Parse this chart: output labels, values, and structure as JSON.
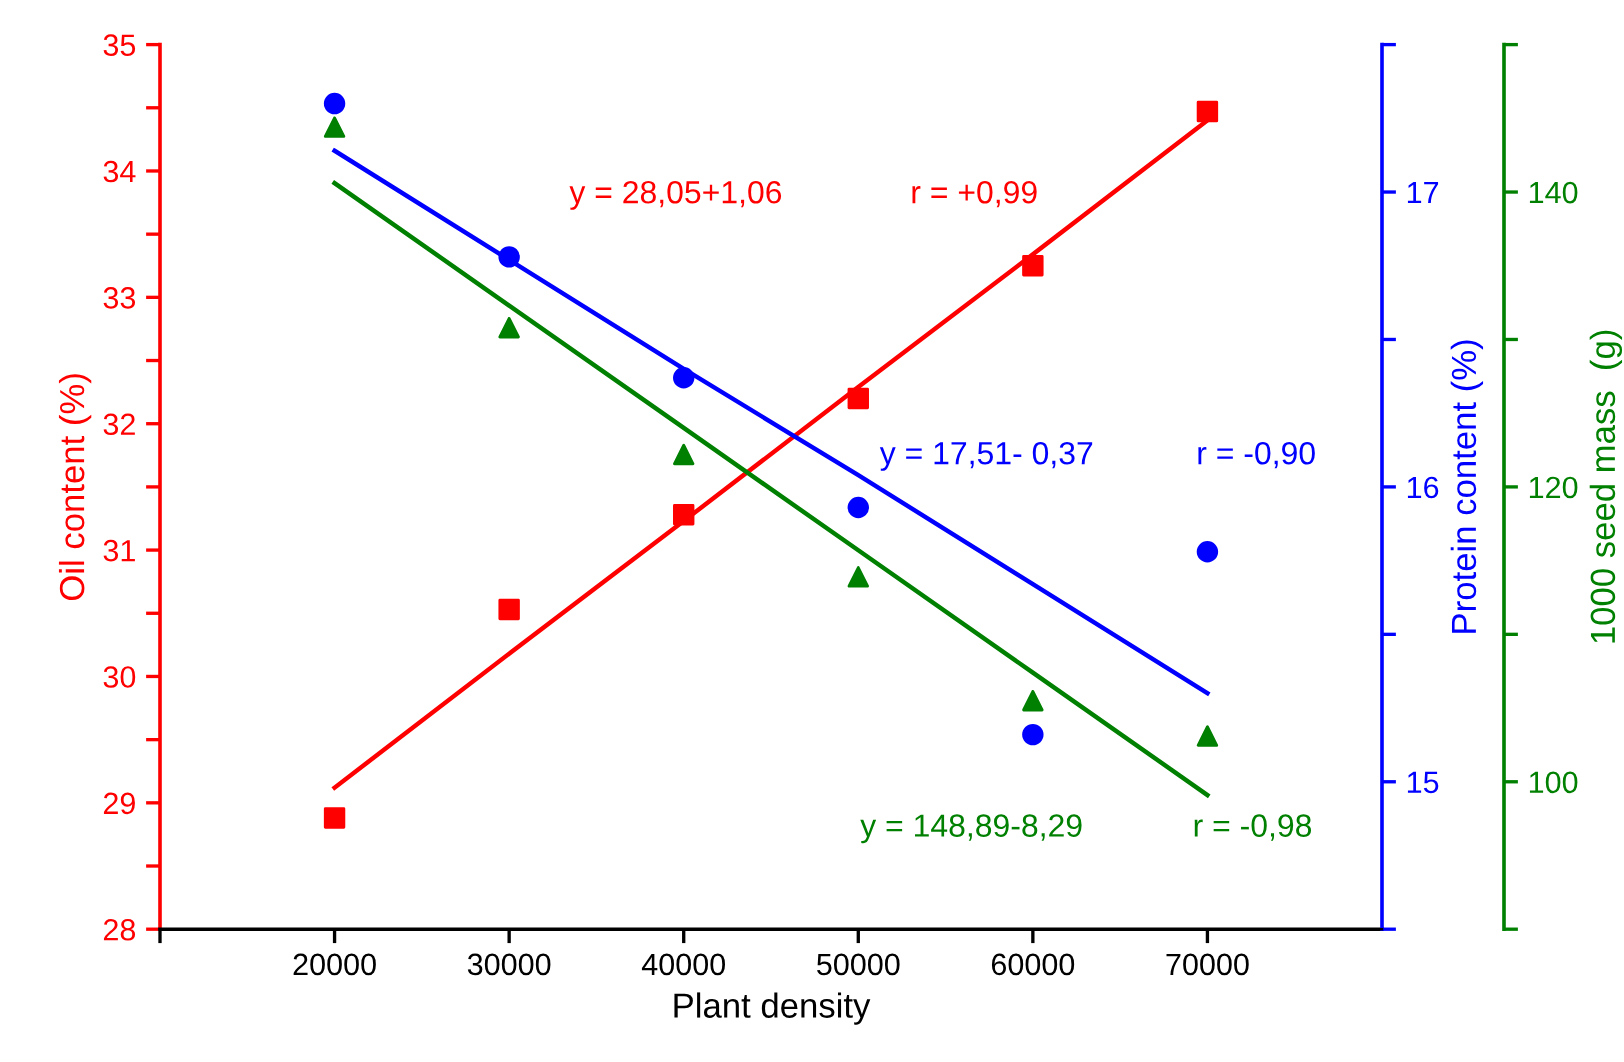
{
  "chart_data": {
    "type": "scatter",
    "xlabel": "Plant density",
    "ylabel": "Oil content (%)",
    "y2label": "Protein content (%)",
    "y3label": "1000 seed mass  (g)",
    "x": [
      20000,
      30000,
      40000,
      50000,
      60000,
      70000
    ],
    "xlim": [
      10000,
      80000
    ],
    "xticks": [
      {
        "value": 10000,
        "label": null
      },
      20000,
      30000,
      40000,
      50000,
      60000,
      70000
    ],
    "ylim": [
      28,
      35
    ],
    "yticks": [
      28,
      {
        "value": 28.5,
        "label": null
      },
      29,
      {
        "value": 29.5,
        "label": null
      },
      30,
      {
        "value": 30.5,
        "label": null
      },
      31,
      {
        "value": 31.5,
        "label": null
      },
      32,
      {
        "value": 32.5,
        "label": null
      },
      33,
      {
        "value": 33.5,
        "label": null
      },
      34,
      {
        "value": 34.5,
        "label": null
      },
      35
    ],
    "y2lim": [
      14.5,
      17.5
    ],
    "y2ticks": [
      {
        "value": 14.5,
        "label": null
      },
      15,
      {
        "value": 15.5,
        "label": null
      },
      16,
      {
        "value": 16.5,
        "label": null
      },
      17,
      {
        "value": 17.5,
        "label": null
      }
    ],
    "y3lim": [
      90,
      150
    ],
    "y3ticks": [
      {
        "value": 90,
        "label": null
      },
      100,
      {
        "value": 110,
        "label": null
      },
      120,
      {
        "value": 130,
        "label": null
      },
      140,
      {
        "value": 150,
        "label": null
      }
    ],
    "series": [
      {
        "axis": "y",
        "color": "#ff0000",
        "marker": "square",
        "values": [
          28.88,
          30.53,
          31.28,
          32.2,
          33.25,
          34.47
        ]
      },
      {
        "axis": "y2",
        "color": "#0000ff",
        "marker": "circle",
        "values": [
          17.3,
          16.78,
          16.37,
          15.93,
          15.16,
          15.78
        ]
      },
      {
        "axis": "y3",
        "color": "#008000",
        "marker": "triangle",
        "values": [
          144.4,
          130.8,
          122.2,
          113.9,
          105.5,
          103.1
        ]
      },
      {
        "type": "line",
        "axis": "y",
        "color": "#ff0000",
        "values": [
          29.12,
          30.18,
          31.23,
          32.29,
          33.34,
          34.4
        ]
      },
      {
        "type": "line",
        "axis": "y2",
        "color": "#0000ff",
        "values": [
          17.14,
          16.77,
          16.4,
          16.04,
          15.67,
          15.3
        ]
      },
      {
        "type": "line",
        "axis": "y3",
        "color": "#008000",
        "values": [
          140.6,
          132.3,
          124.0,
          115.7,
          107.4,
          99.1
        ]
      }
    ],
    "annotations": [
      "y = 28,05+1,06",
      "r = +0,99",
      "y = 17,51- 0,37",
      "r = -0,90",
      "y = 148,89-8,29",
      "r = -0,98"
    ],
    "grid": false,
    "legend": false
  }
}
